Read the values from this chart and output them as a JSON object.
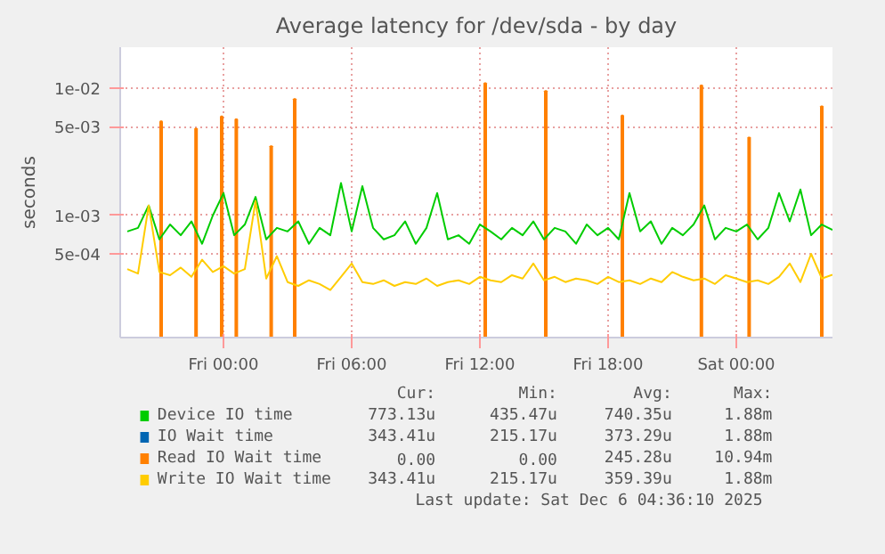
{
  "chart_data": {
    "type": "line",
    "title": "Average latency for /dev/sda - by day",
    "ylabel": "seconds",
    "x": [
      "2025-12-04T19:30",
      "2025-12-04T20:00",
      "2025-12-04T20:30",
      "2025-12-04T21:00",
      "2025-12-04T21:30",
      "2025-12-04T22:00",
      "2025-12-04T22:30",
      "2025-12-04T23:00",
      "2025-12-04T23:30",
      "2025-12-05T00:00",
      "2025-12-05T00:30",
      "2025-12-05T01:00",
      "2025-12-05T01:30",
      "2025-12-05T02:00",
      "2025-12-05T02:30",
      "2025-12-05T03:00",
      "2025-12-05T03:30",
      "2025-12-05T04:00",
      "2025-12-05T04:30",
      "2025-12-05T05:00",
      "2025-12-05T05:30",
      "2025-12-05T06:00",
      "2025-12-05T06:30",
      "2025-12-05T07:00",
      "2025-12-05T07:30",
      "2025-12-05T08:00",
      "2025-12-05T08:30",
      "2025-12-05T09:00",
      "2025-12-05T09:30",
      "2025-12-05T10:00",
      "2025-12-05T10:30",
      "2025-12-05T11:00",
      "2025-12-05T11:30",
      "2025-12-05T12:00",
      "2025-12-05T12:30",
      "2025-12-05T13:00",
      "2025-12-05T13:30",
      "2025-12-05T14:00",
      "2025-12-05T14:30",
      "2025-12-05T15:00",
      "2025-12-05T15:30",
      "2025-12-05T16:00",
      "2025-12-05T16:30",
      "2025-12-05T17:00",
      "2025-12-05T17:30",
      "2025-12-05T18:00",
      "2025-12-05T18:30",
      "2025-12-05T19:00",
      "2025-12-05T19:30",
      "2025-12-05T20:00",
      "2025-12-05T20:30",
      "2025-12-05T21:00",
      "2025-12-05T21:30",
      "2025-12-05T22:00",
      "2025-12-05T22:30",
      "2025-12-05T23:00",
      "2025-12-05T23:30",
      "2025-12-06T00:00",
      "2025-12-06T00:30",
      "2025-12-06T01:00",
      "2025-12-06T01:30",
      "2025-12-06T02:00",
      "2025-12-06T02:30",
      "2025-12-06T03:00",
      "2025-12-06T03:30",
      "2025-12-06T04:00",
      "2025-12-06T04:30"
    ],
    "series": [
      {
        "name": "Device IO time",
        "color": "#00cc00",
        "values": [
          0.00075,
          0.0008,
          0.0012,
          0.00065,
          0.00085,
          0.0007,
          0.0009,
          0.0006,
          0.001,
          0.0015,
          0.0007,
          0.00085,
          0.0014,
          0.00065,
          0.0008,
          0.00075,
          0.0009,
          0.0006,
          0.0008,
          0.0007,
          0.0018,
          0.00075,
          0.0017,
          0.0008,
          0.00065,
          0.0007,
          0.0009,
          0.0006,
          0.0008,
          0.0015,
          0.00065,
          0.0007,
          0.0006,
          0.00085,
          0.00075,
          0.00065,
          0.0008,
          0.0007,
          0.0009,
          0.00065,
          0.0008,
          0.00075,
          0.0006,
          0.00085,
          0.0007,
          0.0008,
          0.00065,
          0.0015,
          0.00075,
          0.0009,
          0.0006,
          0.0008,
          0.0007,
          0.00085,
          0.0012,
          0.00065,
          0.0008,
          0.00075,
          0.00085,
          0.00065,
          0.0008,
          0.0015,
          0.0009,
          0.0016,
          0.0007,
          0.00085,
          0.00077
        ]
      },
      {
        "name": "IO Wait time",
        "color": "#0066b3",
        "values": [
          null,
          null,
          null,
          null,
          null,
          null,
          null,
          null,
          null,
          null,
          null,
          null,
          null,
          null,
          null,
          null,
          null,
          null,
          null,
          null,
          null,
          null,
          null,
          null,
          null,
          null,
          null,
          null,
          null,
          null,
          null,
          null,
          null,
          null,
          null,
          null,
          null,
          null,
          null,
          null,
          null,
          null,
          null,
          null,
          null,
          null,
          null,
          null,
          null,
          null,
          null,
          null,
          null,
          null,
          null,
          null,
          null,
          null,
          null,
          null,
          null,
          null,
          null,
          null,
          null,
          null,
          null
        ]
      },
      {
        "name": "Read IO Wait time",
        "color": "#ff8000",
        "type": "bar",
        "x": [
          "2025-12-04T21:05",
          "2025-12-04T22:43",
          "2025-12-04T23:55",
          "2025-12-05T00:36",
          "2025-12-05T02:14",
          "2025-12-05T03:20",
          "2025-12-05T12:15",
          "2025-12-05T15:05",
          "2025-12-05T18:40",
          "2025-12-05T22:22",
          "2025-12-06T00:36",
          "2025-12-06T04:00"
        ],
        "values": [
          0.0055,
          0.0048,
          0.006,
          0.0057,
          0.0035,
          0.0082,
          0.01094,
          0.0095,
          0.0061,
          0.0105,
          0.0041,
          0.0072
        ]
      },
      {
        "name": "Write IO Wait time",
        "color": "#ffcc00",
        "values": [
          0.00038,
          0.00035,
          0.0012,
          0.00036,
          0.00034,
          0.00039,
          0.00033,
          0.00045,
          0.00036,
          0.0004,
          0.00035,
          0.00038,
          0.0013,
          0.00032,
          0.00048,
          0.0003,
          0.00028,
          0.00031,
          0.00029,
          0.00026,
          0.00033,
          0.00042,
          0.0003,
          0.00029,
          0.00031,
          0.00028,
          0.0003,
          0.00029,
          0.00032,
          0.00028,
          0.0003,
          0.00031,
          0.00029,
          0.00033,
          0.00031,
          0.0003,
          0.00034,
          0.00032,
          0.00042,
          0.00031,
          0.00033,
          0.0003,
          0.00032,
          0.00031,
          0.00029,
          0.00033,
          0.0003,
          0.00031,
          0.00029,
          0.00032,
          0.0003,
          0.00036,
          0.00033,
          0.00031,
          0.00032,
          0.00029,
          0.00034,
          0.00032,
          0.0003,
          0.00031,
          0.00029,
          0.00033,
          0.00042,
          0.0003,
          0.0005,
          0.00032,
          0.000343
        ]
      }
    ],
    "xlim": [
      "2025-12-04T19:10",
      "2025-12-06T04:30"
    ],
    "xticks": [
      {
        "value": "2025-12-05T00:00",
        "label": "Fri 00:00"
      },
      {
        "value": "2025-12-05T06:00",
        "label": "Fri 06:00"
      },
      {
        "value": "2025-12-05T12:00",
        "label": "Fri 12:00"
      },
      {
        "value": "2025-12-05T18:00",
        "label": "Fri 18:00"
      },
      {
        "value": "2025-12-06T00:00",
        "label": "Sat 00:00"
      }
    ],
    "log": true,
    "ylim": [
      0.00011,
      0.021
    ],
    "yticks": [
      {
        "value": 0.0005,
        "label": "5e-04"
      },
      {
        "value": 0.001,
        "label": "1e-03"
      },
      {
        "value": 0.005,
        "label": "5e-03"
      },
      {
        "value": 0.01,
        "label": "1e-02"
      }
    ],
    "grid": true,
    "legend": "bottom",
    "annotations": [
      "Cur:",
      "Min:",
      "Avg:",
      "Max:",
      "773.13u",
      "435.47u",
      "740.35u",
      "1.88m",
      "343.41u",
      "215.17u",
      "373.29u",
      "1.88m",
      "0.00",
      "0.00",
      "245.28u",
      "10.94m",
      "343.41u",
      "215.17u",
      "359.39u",
      "1.88m",
      "Last update: Sat Dec  6 04:36:10 2025"
    ]
  }
}
